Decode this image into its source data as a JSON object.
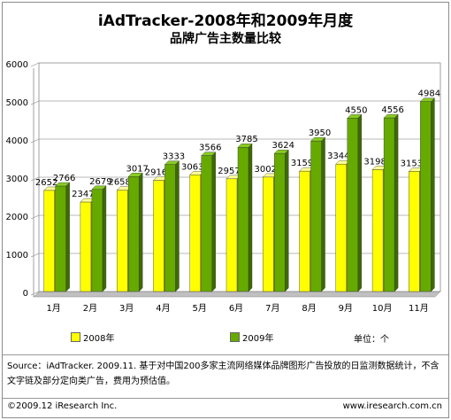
{
  "title": "iAdTracker-2008年和2009年月度",
  "subtitle": "品牌广告主数量比较",
  "chart_data": {
    "type": "bar",
    "title": "iAdTracker-2008年和2009年月度 品牌广告主数量比较",
    "categories": [
      "1月",
      "2月",
      "3月",
      "4月",
      "5月",
      "6月",
      "7月",
      "8月",
      "9月",
      "10月",
      "11月"
    ],
    "series": [
      {
        "name": "2008年",
        "color": "#ffff00",
        "values": [
          2652,
          2347,
          2658,
          2916,
          3063,
          2957,
          3002,
          3159,
          3344,
          3198,
          3153
        ]
      },
      {
        "name": "2009年",
        "color": "#66aa00",
        "values": [
          2766,
          2679,
          3017,
          3333,
          3566,
          3785,
          3624,
          3950,
          4550,
          4556,
          4984
        ]
      }
    ],
    "ylim": [
      0,
      6000
    ],
    "yticks": [
      0,
      1000,
      2000,
      3000,
      4000,
      5000,
      6000
    ],
    "grid": true,
    "legend": "bottom"
  },
  "unit_label": "单位：个",
  "source": "Source：iAdTracker. 2009.11. 基于对中国200多家主流网络媒体品牌图形广告投放的日监测数据统计，不含文字链及部分定向类广告，费用为预估值。",
  "copyright": "©2009.12 iResearch Inc.",
  "website": "www.iresearch.com.cn"
}
